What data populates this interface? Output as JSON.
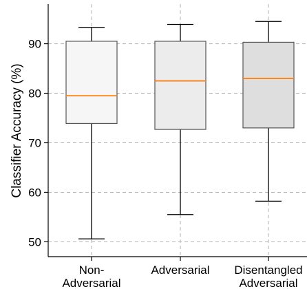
{
  "chart_data": {
    "type": "box",
    "ylabel": "Classifier Accuracy (%)",
    "xlabel": "",
    "ylim": [
      47,
      98
    ],
    "yticks": [
      50,
      60,
      70,
      80,
      90
    ],
    "grid": true,
    "categories": [
      {
        "label_lines": [
          "Non-",
          "Adversarial"
        ],
        "whisker_low": 50.6,
        "q1": 73.9,
        "median": 79.5,
        "q3": 90.5,
        "whisker_high": 93.3,
        "fill": "#f6f6f6"
      },
      {
        "label_lines": [
          "Adversarial"
        ],
        "whisker_low": 55.5,
        "q1": 72.7,
        "median": 82.5,
        "q3": 90.5,
        "whisker_high": 93.9,
        "fill": "#ececec"
      },
      {
        "label_lines": [
          "Disentangled",
          "Adversarial"
        ],
        "whisker_low": 58.2,
        "q1": 73.0,
        "median": 83.0,
        "q3": 90.3,
        "whisker_high": 94.5,
        "fill": "#dedede"
      }
    ],
    "colors": {
      "median": "#ff7f0e",
      "box_edge": "#555555",
      "whisker": "#000000",
      "grid": "#b0b0b0"
    }
  }
}
